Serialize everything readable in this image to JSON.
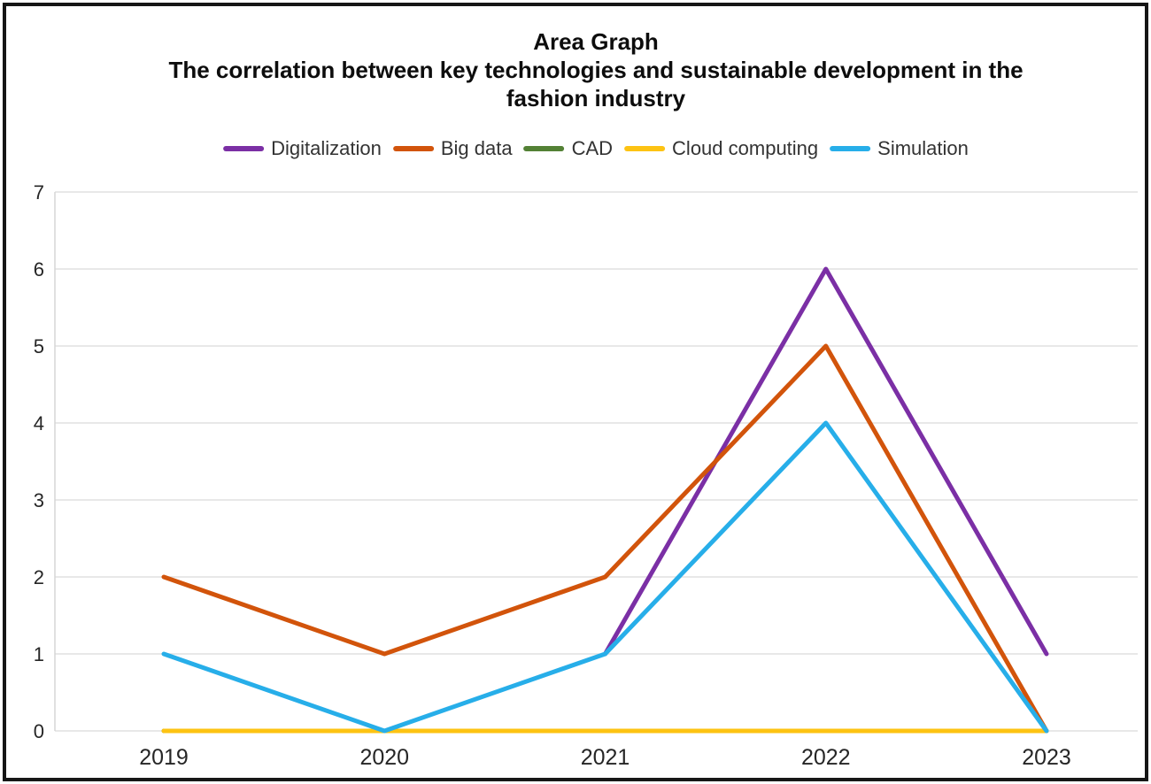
{
  "chart_data": {
    "type": "line",
    "title": "Area Graph",
    "subtitle": "The correlation between key technologies and sustainable development in the fashion industry",
    "subtitle_lines": [
      "The correlation between key technologies and sustainable development in the",
      "fashion industry"
    ],
    "categories": [
      "2019",
      "2020",
      "2021",
      "2022",
      "2023"
    ],
    "series": [
      {
        "name": "Digitalization",
        "color": "#7B2FA5",
        "values": [
          null,
          null,
          1,
          6,
          1
        ]
      },
      {
        "name": "Big data",
        "color": "#D2540B",
        "values": [
          2,
          1,
          2,
          5,
          0
        ]
      },
      {
        "name": "CAD",
        "color": "#538135",
        "values": [
          0,
          0,
          0,
          0,
          0
        ]
      },
      {
        "name": "Cloud computing",
        "color": "#FDC313",
        "values": [
          0,
          0,
          0,
          0,
          0
        ]
      },
      {
        "name": "Simulation",
        "color": "#27AEE9",
        "values": [
          1,
          0,
          1,
          4,
          0
        ]
      }
    ],
    "ylim": [
      0,
      7
    ],
    "yticks": [
      0,
      1,
      2,
      3,
      4,
      5,
      6,
      7
    ],
    "grid": true,
    "legend_position": "top"
  },
  "colors": {
    "gridline": "#E0E0E0",
    "axis_line": "#D6D6D6",
    "border": "#161616",
    "axis_text": "#262626",
    "legend_text": "#333333",
    "title_text": "#0D0D0D"
  }
}
